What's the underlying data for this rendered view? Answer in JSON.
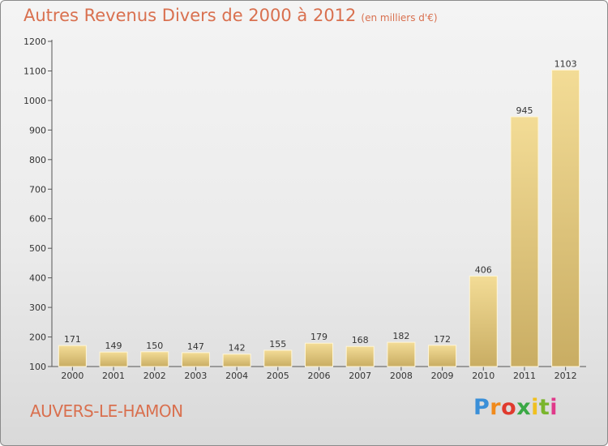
{
  "title": "Autres Revenus Divers de 2000 à 2012",
  "unit_note": "(en milliers d'€)",
  "commune": "AUVERS-LE-HAMON",
  "logo": {
    "letters": [
      "P",
      "r",
      "o",
      "x",
      "i",
      "t",
      "i"
    ]
  },
  "colors": {
    "title": "#d9704f",
    "bar_light": "#f3dc96",
    "bar_dark": "#c9ad63",
    "axis": "#555555"
  },
  "chart_data": {
    "type": "bar",
    "title": "Autres Revenus Divers de 2000 à 2012",
    "categories": [
      "2000",
      "2001",
      "2002",
      "2003",
      "2004",
      "2005",
      "2006",
      "2007",
      "2008",
      "2009",
      "2010",
      "2011",
      "2012"
    ],
    "values": [
      171,
      149,
      150,
      147,
      142,
      155,
      179,
      168,
      182,
      172,
      406,
      945,
      1103
    ],
    "ylim": [
      100,
      1200
    ],
    "yticks": [
      100,
      200,
      300,
      400,
      500,
      600,
      700,
      800,
      900,
      1000,
      1100,
      1200
    ],
    "xlabel": "",
    "ylabel": "",
    "grid": false
  }
}
